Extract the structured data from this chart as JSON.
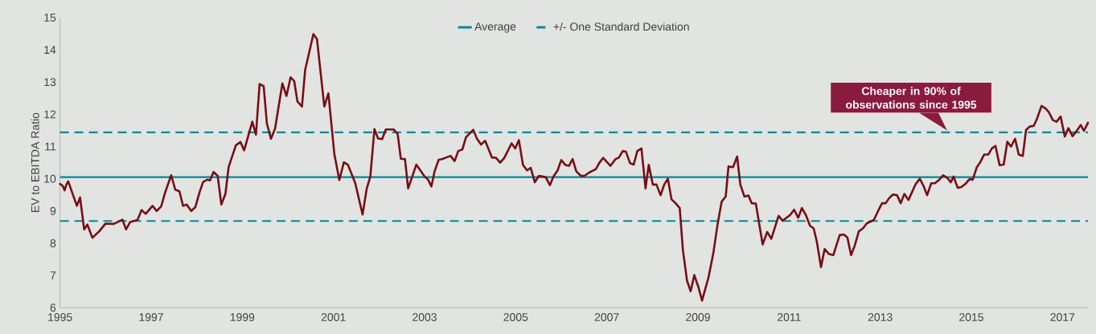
{
  "chart_data": {
    "type": "line",
    "ylabel": "EV to EBITDA Ratio",
    "xlim": [
      1995,
      2017.56
    ],
    "xticks": [
      1995,
      1997,
      1999,
      2001,
      2003,
      2005,
      2007,
      2009,
      2011,
      2013,
      2015,
      2017
    ],
    "ylim": [
      6,
      15
    ],
    "yticks": [
      6,
      7,
      8,
      9,
      10,
      11,
      12,
      13,
      14,
      15
    ],
    "grid": false,
    "legend": "top",
    "series": [
      {
        "color": "#7a0c14",
        "x": [
          1995.0,
          1995.06,
          1995.1,
          1995.14,
          1995.18,
          1995.37,
          1995.44,
          1995.53,
          1995.6,
          1995.71,
          1995.86,
          1996.0,
          1996.18,
          1996.37,
          1996.45,
          1996.54,
          1996.7,
          1996.79,
          1996.88,
          1997.03,
          1997.12,
          1997.22,
          1997.31,
          1997.44,
          1997.53,
          1997.62,
          1997.7,
          1997.78,
          1997.88,
          1997.97,
          1998.06,
          1998.14,
          1998.23,
          1998.29,
          1998.37,
          1998.46,
          1998.54,
          1998.63,
          1998.7,
          1998.86,
          1998.96,
          1999.04,
          1999.22,
          1999.3,
          1999.38,
          1999.47,
          1999.54,
          1999.63,
          1999.72,
          1999.88,
          1999.97,
          2000.06,
          2000.14,
          2000.21,
          2000.31,
          2000.38,
          2000.56,
          2000.64,
          2000.8,
          2000.89,
          2001.02,
          2001.13,
          2001.23,
          2001.32,
          2001.48,
          2001.64,
          2001.73,
          2001.81,
          2001.9,
          2001.98,
          2002.07,
          2002.15,
          2002.32,
          2002.41,
          2002.48,
          2002.57,
          2002.64,
          2002.82,
          2003.0,
          2003.08,
          2003.15,
          2003.22,
          2003.31,
          2003.38,
          2003.57,
          2003.66,
          2003.74,
          2003.83,
          2003.91,
          2004.07,
          2004.15,
          2004.24,
          2004.33,
          2004.48,
          2004.57,
          2004.66,
          2004.75,
          2004.91,
          2004.99,
          2005.07,
          2005.16,
          2005.25,
          2005.33,
          2005.42,
          2005.51,
          2005.66,
          2005.75,
          2005.83,
          2005.92,
          2006.0,
          2006.09,
          2006.17,
          2006.25,
          2006.33,
          2006.43,
          2006.51,
          2006.61,
          2006.76,
          2006.83,
          2006.92,
          2007.08,
          2007.19,
          2007.26,
          2007.35,
          2007.42,
          2007.51,
          2007.59,
          2007.67,
          2007.76,
          2007.85,
          2007.92,
          2008.01,
          2008.09,
          2008.18,
          2008.26,
          2008.34,
          2008.42,
          2008.51,
          2008.6,
          2008.67,
          2008.76,
          2008.84,
          2008.92,
          2009.01,
          2009.09,
          2009.23,
          2009.34,
          2009.43,
          2009.52,
          2009.61,
          2009.67,
          2009.77,
          2009.86,
          2009.93,
          2010.02,
          2010.11,
          2010.18,
          2010.27,
          2010.42,
          2010.52,
          2010.61,
          2010.77,
          2010.86,
          2011.02,
          2011.11,
          2011.2,
          2011.28,
          2011.37,
          2011.46,
          2011.54,
          2011.61,
          2011.7,
          2011.78,
          2011.87,
          2011.97,
          2012.11,
          2012.2,
          2012.28,
          2012.36,
          2012.44,
          2012.53,
          2012.62,
          2012.71,
          2012.86,
          2012.95,
          2013.04,
          2013.12,
          2013.19,
          2013.28,
          2013.37,
          2013.45,
          2013.53,
          2013.62,
          2013.78,
          2013.87,
          2013.95,
          2014.03,
          2014.12,
          2014.2,
          2014.29,
          2014.38,
          2014.47,
          2014.55,
          2014.61,
          2014.7,
          2014.78,
          2014.87,
          2014.96,
          2015.03,
          2015.12,
          2015.19,
          2015.28,
          2015.37,
          2015.45,
          2015.53,
          2015.62,
          2015.71,
          2015.79,
          2015.87,
          2015.96,
          2016.04,
          2016.13,
          2016.2,
          2016.28,
          2016.37,
          2016.44,
          2016.54,
          2016.63,
          2016.7,
          2016.79,
          2016.87,
          2016.96,
          2017.05,
          2017.13,
          2017.22,
          2017.31,
          2017.4,
          2017.47,
          2017.56
        ],
        "values": [
          9.84,
          9.78,
          9.64,
          9.82,
          9.92,
          9.16,
          9.42,
          8.43,
          8.58,
          8.17,
          8.37,
          8.61,
          8.6,
          8.73,
          8.43,
          8.66,
          8.72,
          9.03,
          8.91,
          9.16,
          9.0,
          9.14,
          9.59,
          10.11,
          9.66,
          9.61,
          9.16,
          9.2,
          9.0,
          9.12,
          9.57,
          9.9,
          9.97,
          9.95,
          10.21,
          10.09,
          9.2,
          9.53,
          10.36,
          11.04,
          11.14,
          10.88,
          11.77,
          11.37,
          12.94,
          12.87,
          11.71,
          11.24,
          11.56,
          12.96,
          12.57,
          13.15,
          13.03,
          12.4,
          12.24,
          13.38,
          14.49,
          14.33,
          12.24,
          12.65,
          10.77,
          9.96,
          10.51,
          10.43,
          9.86,
          8.89,
          9.69,
          10.07,
          11.54,
          11.25,
          11.23,
          11.53,
          11.53,
          11.39,
          10.62,
          10.61,
          9.7,
          10.44,
          10.07,
          9.97,
          9.76,
          10.23,
          10.59,
          10.61,
          10.71,
          10.55,
          10.86,
          10.91,
          11.29,
          11.52,
          11.24,
          11.06,
          11.18,
          10.66,
          10.65,
          10.5,
          10.65,
          11.1,
          10.94,
          11.2,
          10.43,
          10.26,
          10.34,
          9.89,
          10.09,
          10.05,
          9.8,
          10.07,
          10.26,
          10.58,
          10.43,
          10.4,
          10.61,
          10.23,
          10.09,
          10.09,
          10.19,
          10.3,
          10.48,
          10.65,
          10.4,
          10.61,
          10.65,
          10.86,
          10.84,
          10.48,
          10.44,
          10.86,
          10.94,
          9.7,
          10.43,
          9.82,
          9.82,
          9.49,
          9.82,
          10.0,
          9.36,
          9.24,
          9.09,
          7.79,
          6.84,
          6.51,
          7.01,
          6.64,
          6.22,
          6.93,
          7.71,
          8.58,
          9.29,
          9.45,
          10.38,
          10.36,
          10.69,
          9.82,
          9.45,
          9.48,
          9.24,
          9.23,
          7.96,
          8.35,
          8.14,
          8.85,
          8.7,
          8.87,
          9.04,
          8.79,
          9.09,
          8.87,
          8.54,
          8.46,
          8.04,
          7.26,
          7.82,
          7.67,
          7.63,
          8.25,
          8.27,
          8.18,
          7.63,
          7.92,
          8.37,
          8.46,
          8.62,
          8.72,
          8.99,
          9.24,
          9.24,
          9.39,
          9.51,
          9.49,
          9.24,
          9.53,
          9.34,
          9.84,
          10.0,
          9.78,
          9.49,
          9.86,
          9.86,
          9.96,
          10.11,
          10.03,
          9.89,
          10.07,
          9.72,
          9.74,
          9.84,
          9.99,
          9.97,
          10.36,
          10.5,
          10.75,
          10.75,
          10.94,
          11.02,
          10.42,
          10.44,
          11.15,
          11.0,
          11.24,
          10.75,
          10.71,
          11.51,
          11.62,
          11.64,
          11.86,
          12.26,
          12.18,
          12.07,
          11.82,
          11.77,
          11.93,
          11.31,
          11.57,
          11.32,
          11.48,
          11.67,
          11.49,
          11.74
        ]
      }
    ],
    "ref_lines": [
      {
        "axis": "y",
        "value": 10.05,
        "label": "Average",
        "color": "#00889a",
        "line_style": "solid"
      },
      {
        "axis": "y",
        "value": 11.44,
        "label": "+/- One Standard Deviation",
        "color": "#00889a",
        "line_style": "dashed"
      },
      {
        "axis": "y",
        "value": 8.69,
        "color": "#00889a",
        "line_style": "dashed"
      }
    ],
    "annotations": [
      {
        "text": "Cheaper in 90% of observations since 1995",
        "x": 2014.47,
        "y": 11.5
      }
    ]
  }
}
